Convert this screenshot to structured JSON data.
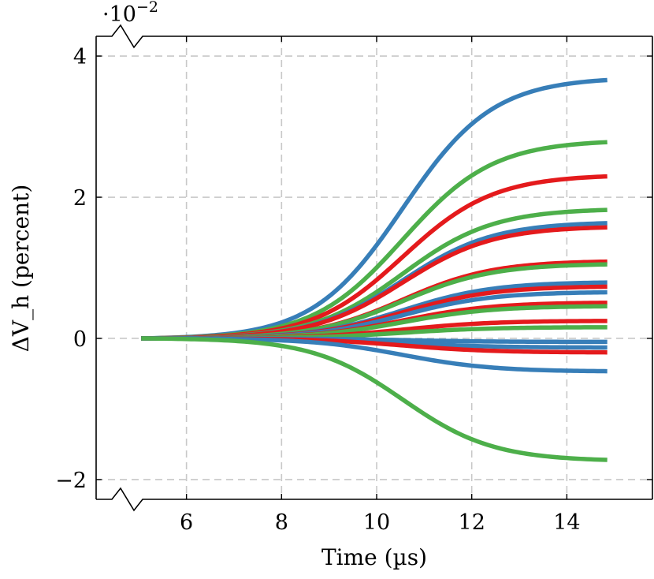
{
  "chart_data": {
    "type": "line",
    "xlabel": "Time (µs)",
    "ylabel": "ΔV_h (percent)",
    "y_scale_note": "·10",
    "y_scale_exponent": "−2",
    "xlim": [
      4.1,
      15.8
    ],
    "ylim": [
      -2.28,
      4.28
    ],
    "x_ticks": [
      6,
      8,
      10,
      12,
      14
    ],
    "x_tick_labels": [
      "6",
      "8",
      "10",
      "12",
      "14"
    ],
    "y_ticks": [
      -2,
      0,
      2,
      4
    ],
    "y_tick_labels": [
      "−2",
      "0",
      "2",
      "4"
    ],
    "grid": true,
    "axis_break_marks": true,
    "x_start": 5.05,
    "x_end": 14.85,
    "transition_center": 10.55,
    "transition_width": 0.95,
    "colors": {
      "blue": "#377eb8",
      "green": "#4daf4a",
      "red": "#e41a1c"
    },
    "series": [
      {
        "color": "blue",
        "final": 3.7
      },
      {
        "color": "green",
        "final": 2.81
      },
      {
        "color": "red",
        "final": 2.32
      },
      {
        "color": "green",
        "final": 1.84
      },
      {
        "color": "blue",
        "final": 1.65
      },
      {
        "color": "red",
        "final": 1.59
      },
      {
        "color": "red",
        "final": 1.1
      },
      {
        "color": "green",
        "final": 1.06
      },
      {
        "color": "blue",
        "final": 0.8
      },
      {
        "color": "red",
        "final": 0.74
      },
      {
        "color": "blue",
        "final": 0.66
      },
      {
        "color": "red",
        "final": 0.51
      },
      {
        "color": "green",
        "final": 0.46
      },
      {
        "color": "red",
        "final": 0.25
      },
      {
        "color": "green",
        "final": 0.16
      },
      {
        "color": "blue",
        "final": -0.05
      },
      {
        "color": "blue",
        "final": -0.13
      },
      {
        "color": "red",
        "final": -0.2
      },
      {
        "color": "blue",
        "final": -0.47
      },
      {
        "color": "green",
        "final": -1.74
      }
    ]
  }
}
